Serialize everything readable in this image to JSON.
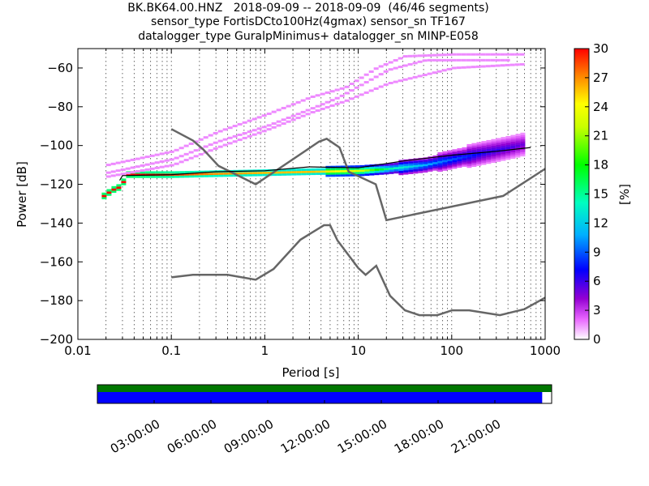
{
  "title": {
    "line1": "BK.BK64.00.HNZ   2018-09-09 -- 2018-09-09  (46/46 segments)",
    "line2": "sensor_type FortisDCto100Hz(4gmax) sensor_sn TF167",
    "line3": "datalogger_type GuralpMinimus+ datalogger_sn MINP-E058"
  },
  "chart_data": [
    {
      "type": "heatmap",
      "xlabel": "Period [s]",
      "ylabel": "Power [dB]",
      "xscale": "log",
      "xlim": [
        0.01,
        1000
      ],
      "ylim": [
        -200,
        -50
      ],
      "x_ticks": [
        0.01,
        0.1,
        1,
        10,
        100,
        1000
      ],
      "x_tick_labels": [
        "0.01",
        "0.1",
        "1",
        "10",
        "100",
        "1000"
      ],
      "y_ticks": [
        -200,
        -180,
        -160,
        -140,
        -120,
        -100,
        -80,
        -60
      ],
      "y_tick_labels": [
        "−200",
        "−180",
        "−160",
        "−140",
        "−120",
        "−100",
        "−80",
        "−60"
      ],
      "grid": "dotted vertical lines",
      "colorbar": {
        "label": "[%]",
        "range": [
          0,
          30
        ],
        "ticks": [
          0,
          3,
          6,
          9,
          12,
          15,
          18,
          21,
          24,
          27,
          30
        ]
      },
      "noise_models": {
        "high": {
          "period": [
            0.1,
            0.17,
            0.22,
            0.32,
            0.8,
            3.8,
            4.6,
            6.3,
            7.9,
            15.4,
            20,
            354.8,
            1000
          ],
          "power": [
            -91.5,
            -97.4,
            -102,
            -110.5,
            -120,
            -98,
            -96.5,
            -101,
            -113.5,
            -120,
            -138.5,
            -126,
            -112
          ]
        },
        "low": {
          "period": [
            0.1,
            0.17,
            0.4,
            0.8,
            1.24,
            2.4,
            4.3,
            5,
            6,
            10,
            12,
            15.6,
            21.9,
            31.6,
            45,
            70,
            101,
            154,
            328,
            600,
            1000
          ],
          "power": [
            -168,
            -166.7,
            -166.7,
            -169.2,
            -163.7,
            -148.6,
            -141.1,
            -141.1,
            -149,
            -163.2,
            -166.7,
            -162,
            -177.5,
            -185,
            -187.5,
            -187.5,
            -185,
            -185,
            -187.5,
            -184.4,
            -178.5
          ]
        }
      },
      "pdf_bands": [
        {
          "name": "main",
          "period": [
            0.018,
            0.022,
            0.028,
            0.031,
            0.1,
            0.3,
            1,
            3,
            10,
            20,
            50,
            100,
            200,
            400,
            600
          ],
          "center_power": [
            -126,
            -123,
            -121,
            -115,
            -115,
            -114.5,
            -114,
            -113.5,
            -113,
            -112,
            -110,
            -107,
            -104,
            -101,
            -99
          ],
          "spread": [
            1,
            1,
            1,
            1,
            1,
            1.5,
            1.5,
            1.5,
            2,
            2.5,
            3.5,
            4.5,
            5.5,
            6,
            6
          ],
          "peak_percent": [
            30,
            30,
            30,
            30,
            28,
            26,
            25,
            25,
            22,
            14,
            10,
            8,
            6,
            5,
            4
          ]
        },
        {
          "name": "upper-1",
          "period": [
            0.02,
            0.1,
            0.3,
            1,
            3,
            7,
            15,
            30,
            100,
            600
          ],
          "power": [
            -110,
            -103,
            -93,
            -84,
            -75,
            -70,
            -60,
            -54,
            -53,
            -53
          ]
        },
        {
          "name": "upper-2",
          "period": [
            0.02,
            0.1,
            0.3,
            1,
            3,
            6,
            10,
            20,
            50,
            100,
            400
          ],
          "power": [
            -114,
            -107,
            -98,
            -90,
            -81,
            -75,
            -69,
            -61,
            -56,
            -56,
            -56
          ]
        },
        {
          "name": "upper-3",
          "period": [
            0.02,
            0.1,
            0.3,
            1,
            3,
            7,
            20,
            100,
            600
          ],
          "power": [
            -116,
            -110,
            -101,
            -92,
            -83,
            -77,
            -68,
            -60,
            -58
          ]
        }
      ],
      "mode_line": {
        "period": [
          0.028,
          0.03,
          0.1,
          0.3,
          1,
          3,
          10,
          30,
          100,
          300,
          700
        ],
        "power": [
          -118,
          -115.5,
          -115,
          -113.5,
          -113,
          -111,
          -111.5,
          -108,
          -105,
          -103,
          -101
        ]
      }
    },
    {
      "type": "timeline",
      "x_tick_labels": [
        "03:00:00",
        "06:00:00",
        "09:00:00",
        "12:00:00",
        "15:00:00",
        "18:00:00",
        "21:00:00"
      ],
      "x_ticks_hours": [
        3,
        6,
        9,
        12,
        15,
        18,
        21
      ],
      "span_hours": [
        0,
        24
      ],
      "data_coverage_hours": [
        0,
        23.5
      ],
      "colors": {
        "top": "#007700",
        "bottom": "#0000ff"
      }
    }
  ]
}
